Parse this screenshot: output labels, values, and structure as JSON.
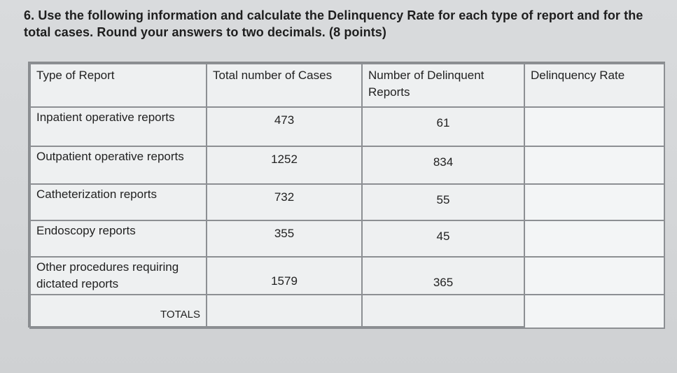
{
  "question": {
    "line1": "6. Use the following information and calculate the Delinquency Rate for each type of report and for the",
    "line2": "total cases. Round your answers to two decimals. (8 points)"
  },
  "table": {
    "headers": [
      "Type of Report",
      "Total number of Cases",
      "Number of Delinquent Reports",
      "Delinquency Rate"
    ],
    "rows": [
      {
        "type": "Inpatient operative reports",
        "total": "473",
        "delinquent": "61",
        "rate": ""
      },
      {
        "type": "Outpatient operative reports",
        "total": "1252",
        "delinquent": "834",
        "rate": ""
      },
      {
        "type": "Catheterization reports",
        "total": "732",
        "delinquent": "55",
        "rate": ""
      },
      {
        "type": "Endoscopy reports",
        "total": "355",
        "delinquent": "45",
        "rate": ""
      },
      {
        "type": "Other procedures requiring dictated reports",
        "total": "1579",
        "delinquent": "365",
        "rate": ""
      }
    ],
    "totals_label": "TOTALS",
    "totals": {
      "total": "",
      "delinquent": "",
      "rate": ""
    }
  }
}
